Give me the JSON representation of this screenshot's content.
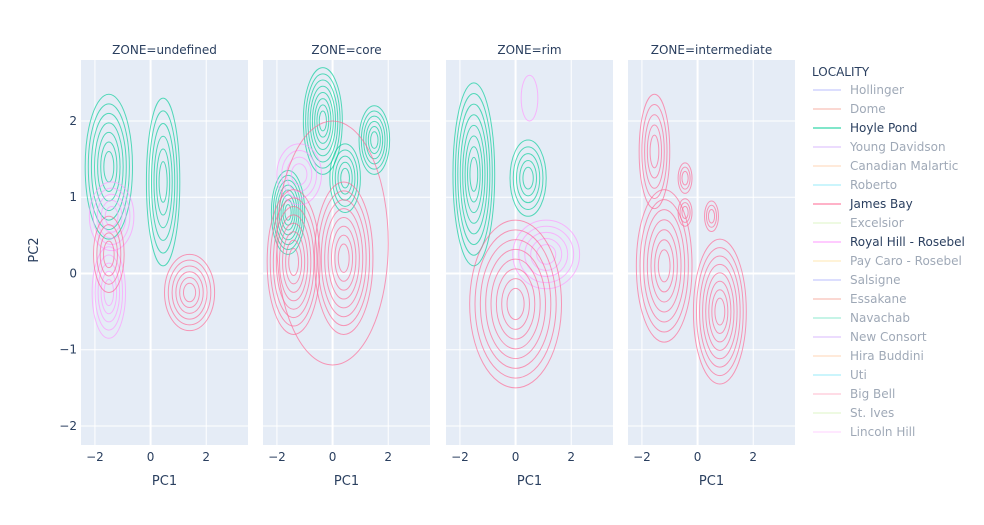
{
  "chart_data": {
    "type": "contour",
    "subplot_axis_label_x": "PC1",
    "ylabel": "PC2",
    "xlim": [
      -2.5,
      3.5
    ],
    "ylim": [
      -2.25,
      2.8
    ],
    "x_ticks": [
      "−2",
      "0",
      "2"
    ],
    "x_tick_values": [
      -2,
      0,
      2
    ],
    "y_ticks": [
      "2",
      "1",
      "0",
      "−1",
      "−2"
    ],
    "y_tick_values": [
      2,
      1,
      0,
      -1,
      -2
    ],
    "grid": true,
    "legend": {
      "title": "LOCALITY",
      "placement": "right",
      "entries": [
        {
          "label": "Hollinger",
          "color": "#636efa",
          "active": false
        },
        {
          "label": "Dome",
          "color": "#ef553b",
          "active": false
        },
        {
          "label": "Hoyle Pond",
          "color": "#00cc96",
          "active": true
        },
        {
          "label": "Young Davidson",
          "color": "#ab63fa",
          "active": false
        },
        {
          "label": "Canadian Malartic",
          "color": "#ffa15a",
          "active": false
        },
        {
          "label": "Roberto",
          "color": "#19d3f3",
          "active": false
        },
        {
          "label": "James Bay",
          "color": "#ff6692",
          "active": true
        },
        {
          "label": "Excelsior",
          "color": "#b6e880",
          "active": false
        },
        {
          "label": "Royal Hill - Rosebel",
          "color": "#ff97ff",
          "active": true
        },
        {
          "label": "Pay Caro - Rosebel",
          "color": "#fecb52",
          "active": false
        },
        {
          "label": "Salsigne",
          "color": "#636efa",
          "active": false
        },
        {
          "label": "Essakane",
          "color": "#ef553b",
          "active": false
        },
        {
          "label": "Navachab",
          "color": "#00cc96",
          "active": false
        },
        {
          "label": "New Consort",
          "color": "#ab63fa",
          "active": false
        },
        {
          "label": "Hira Buddini",
          "color": "#ffa15a",
          "active": false
        },
        {
          "label": "Uti",
          "color": "#19d3f3",
          "active": false
        },
        {
          "label": "Big Bell",
          "color": "#ff6692",
          "active": false
        },
        {
          "label": "St. Ives",
          "color": "#b6e880",
          "active": false
        },
        {
          "label": "Lincoln Hill",
          "color": "#ff97ff",
          "active": false
        }
      ]
    },
    "facets": [
      {
        "title": "ZONE=undefined",
        "clusters": [
          {
            "series": "Hoyle Pond",
            "color": "#00cc96",
            "cx": -1.5,
            "cy": 1.4,
            "rx": 0.85,
            "ry": 0.95,
            "levels": 7
          },
          {
            "series": "Hoyle Pond",
            "color": "#00cc96",
            "cx": 0.45,
            "cy": 1.2,
            "rx": 0.6,
            "ry": 1.1,
            "levels": 6
          },
          {
            "series": "Royal Hill - Rosebel",
            "color": "#ff97ff",
            "cx": -1.4,
            "cy": 0.75,
            "rx": 0.8,
            "ry": 0.45,
            "levels": 5
          },
          {
            "series": "Royal Hill - Rosebel",
            "color": "#ff97ff",
            "cx": -1.5,
            "cy": -0.25,
            "rx": 0.6,
            "ry": 0.6,
            "levels": 5
          },
          {
            "series": "James Bay",
            "color": "#ff6692",
            "cx": -1.5,
            "cy": 0.25,
            "rx": 0.55,
            "ry": 0.5,
            "levels": 4
          },
          {
            "series": "James Bay",
            "color": "#ff6692",
            "cx": 1.4,
            "cy": -0.25,
            "rx": 0.9,
            "ry": 0.5,
            "levels": 6
          }
        ]
      },
      {
        "title": "ZONE=core",
        "clusters": [
          {
            "series": "Hoyle Pond",
            "color": "#00cc96",
            "cx": -0.35,
            "cy": 2.0,
            "rx": 0.7,
            "ry": 0.7,
            "levels": 8
          },
          {
            "series": "Hoyle Pond",
            "color": "#00cc96",
            "cx": 1.5,
            "cy": 1.75,
            "rx": 0.55,
            "ry": 0.45,
            "levels": 6
          },
          {
            "series": "Hoyle Pond",
            "color": "#00cc96",
            "cx": 0.45,
            "cy": 1.25,
            "rx": 0.55,
            "ry": 0.45,
            "levels": 5
          },
          {
            "series": "Hoyle Pond",
            "color": "#00cc96",
            "cx": -1.6,
            "cy": 0.8,
            "rx": 0.6,
            "ry": 0.55,
            "levels": 8
          },
          {
            "series": "Royal Hill - Rosebel",
            "color": "#ff97ff",
            "cx": -1.2,
            "cy": 1.3,
            "rx": 0.8,
            "ry": 0.4,
            "levels": 4
          },
          {
            "series": "James Bay",
            "color": "#ff6692",
            "cx": -1.4,
            "cy": 0.15,
            "rx": 0.95,
            "ry": 0.95,
            "levels": 8
          },
          {
            "series": "James Bay",
            "color": "#ff6692",
            "cx": 0.4,
            "cy": 0.2,
            "rx": 1.05,
            "ry": 1.0,
            "levels": 8
          },
          {
            "series": "James Bay",
            "color": "#ff6692",
            "cx": 0.0,
            "cy": 0.4,
            "rx": 2.0,
            "ry": 1.6,
            "levels": 1
          }
        ]
      },
      {
        "title": "ZONE=rim",
        "clusters": [
          {
            "series": "Hoyle Pond",
            "color": "#00cc96",
            "cx": -1.5,
            "cy": 1.3,
            "rx": 0.75,
            "ry": 1.2,
            "levels": 8
          },
          {
            "series": "Hoyle Pond",
            "color": "#00cc96",
            "cx": 0.45,
            "cy": 1.25,
            "rx": 0.65,
            "ry": 0.5,
            "levels": 5
          },
          {
            "series": "Royal Hill - Rosebel",
            "color": "#ff97ff",
            "cx": 0.5,
            "cy": 2.3,
            "rx": 0.3,
            "ry": 0.3,
            "levels": 1
          },
          {
            "series": "Royal Hill - Rosebel",
            "color": "#ff97ff",
            "cx": 1.1,
            "cy": 0.25,
            "rx": 1.2,
            "ry": 0.45,
            "levels": 5
          },
          {
            "series": "James Bay",
            "color": "#ff6692",
            "cx": 0.0,
            "cy": -0.4,
            "rx": 1.65,
            "ry": 1.1,
            "levels": 8
          }
        ]
      },
      {
        "title": "ZONE=intermediate",
        "clusters": [
          {
            "series": "James Bay",
            "color": "#ff6692",
            "cx": -1.55,
            "cy": 1.6,
            "rx": 0.55,
            "ry": 0.75,
            "levels": 5
          },
          {
            "series": "James Bay",
            "color": "#ff6692",
            "cx": -1.2,
            "cy": 0.1,
            "rx": 1.0,
            "ry": 1.0,
            "levels": 7
          },
          {
            "series": "James Bay",
            "color": "#ff6692",
            "cx": -0.45,
            "cy": 1.25,
            "rx": 0.25,
            "ry": 0.2,
            "levels": 3
          },
          {
            "series": "James Bay",
            "color": "#ff6692",
            "cx": -0.45,
            "cy": 0.8,
            "rx": 0.25,
            "ry": 0.18,
            "levels": 3
          },
          {
            "series": "James Bay",
            "color": "#ff6692",
            "cx": 0.5,
            "cy": 0.75,
            "rx": 0.25,
            "ry": 0.2,
            "levels": 3
          },
          {
            "series": "James Bay",
            "color": "#ff6692",
            "cx": 0.8,
            "cy": -0.5,
            "rx": 0.95,
            "ry": 0.95,
            "levels": 8
          }
        ]
      }
    ]
  }
}
